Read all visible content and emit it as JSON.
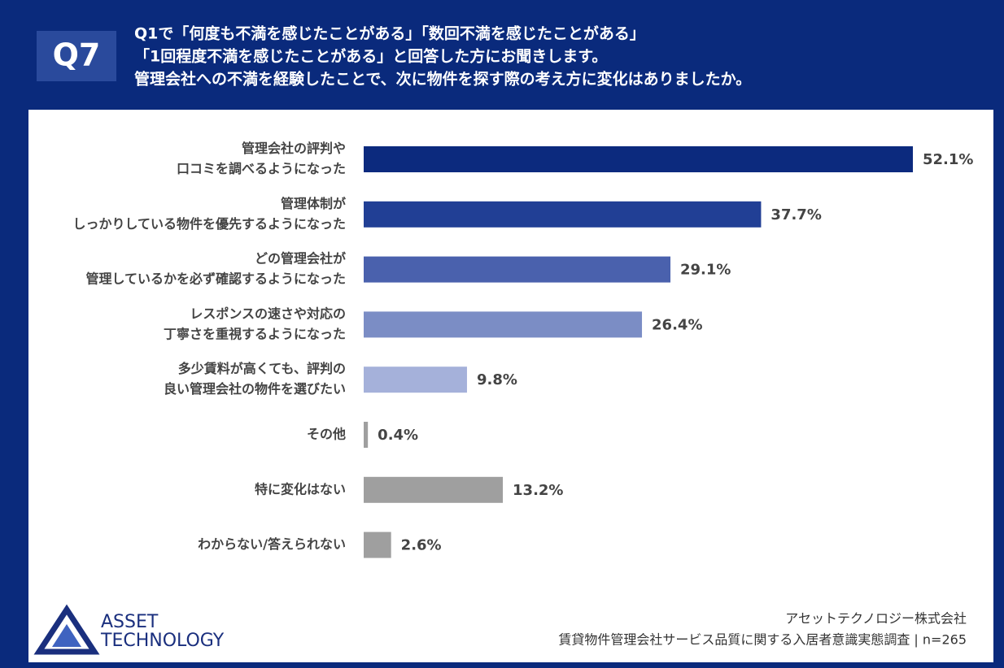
{
  "header": {
    "q_label": "Q7",
    "lines": [
      "Q1で「何度も不満を感じたことがある」「数回不満を感じたことがある」",
      "「1回程度不満を感じたことがある」と回答した方にお聞きします。",
      "管理会社への不満を経験したことで、次に物件を探す際の考え方に変化はありましたか。"
    ]
  },
  "chart_data": {
    "type": "bar",
    "orientation": "horizontal",
    "categories": [
      [
        "管理会社の評判や",
        "口コミを調べるようになった"
      ],
      [
        "管理体制が",
        "しっかりしている物件を優先するようになった"
      ],
      [
        "どの管理会社が",
        "管理しているかを必ず確認するようになった"
      ],
      [
        "レスポンスの速さや対応の",
        "丁寧さを重視するようになった"
      ],
      [
        "多少賃料が高くても、評判の",
        "良い管理会社の物件を選びたい"
      ],
      [
        "その他"
      ],
      [
        "特に変化はない"
      ],
      [
        "わからない/答えられない"
      ]
    ],
    "values": [
      52.1,
      37.7,
      29.1,
      26.4,
      9.8,
      0.4,
      13.2,
      2.6
    ],
    "value_labels": [
      "52.1%",
      "37.7%",
      "29.1%",
      "26.4%",
      "9.8%",
      "0.4%",
      "13.2%",
      "2.6%"
    ],
    "colors": [
      "#0c2a7e",
      "#213f95",
      "#4a61ad",
      "#7b8dc5",
      "#a5b1da",
      "#9f9f9f",
      "#9f9f9f",
      "#9f9f9f"
    ]
  },
  "footer": {
    "logo": [
      "ASSET",
      "TECHNOLOGY"
    ],
    "source": [
      "アセットテクノロジー株式会社",
      "賃貸物件管理会社サービス品質に関する入居者意識実態調査 | n=265"
    ]
  }
}
